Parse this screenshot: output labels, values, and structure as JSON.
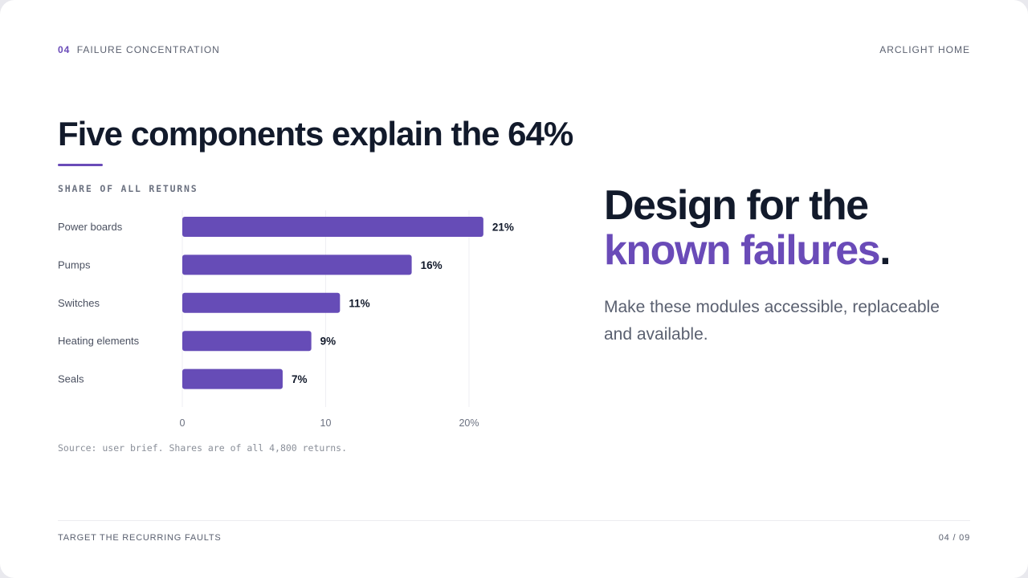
{
  "header": {
    "section_number": "04",
    "section_title": "FAILURE CONCENTRATION",
    "brand": "ARCLIGHT HOME"
  },
  "title": "Five components explain the 64%",
  "chart_label": "SHARE OF ALL RETURNS",
  "source_note": "Source: user brief. Shares are of all 4,800 returns.",
  "headline": {
    "line1": "Design for the",
    "line2_accent": "known failures",
    "line2_end": "."
  },
  "body_text": "Make these modules accessible, replaceable and available.",
  "footer": {
    "left": "TARGET THE RECURRING FAULTS",
    "right": "04 / 09"
  },
  "colors": {
    "accent": "#6a4bb8",
    "bar": "#664cb7",
    "ink": "#121a2b"
  },
  "chart_data": {
    "type": "bar",
    "orientation": "horizontal",
    "title": "SHARE OF ALL RETURNS",
    "categories": [
      "Power boards",
      "Pumps",
      "Switches",
      "Heating elements",
      "Seals"
    ],
    "values": [
      21,
      16,
      11,
      9,
      7
    ],
    "data_labels": [
      "21%",
      "16%",
      "11%",
      "9%",
      "7%"
    ],
    "xlim": [
      0,
      20
    ],
    "x_ticks": [
      0,
      10,
      20
    ],
    "x_tick_labels": [
      "0",
      "10",
      "20%"
    ],
    "grid": true,
    "legend": "none"
  }
}
